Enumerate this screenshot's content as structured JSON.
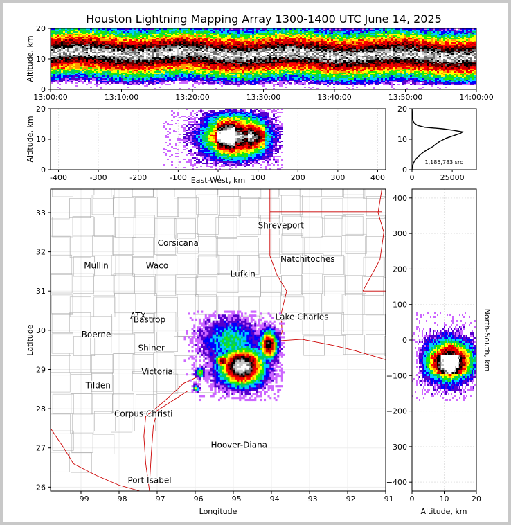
{
  "title": "Houston Lightning Mapping Array 1300-1400 UTC June 14, 2025",
  "colors": {
    "border": "#c8c8c8",
    "state_lines": "#cc0000",
    "county_lines": "#b4b4b4",
    "highlight_station": "#f07832",
    "hoover_diana": "#0000ff",
    "density_scale": [
      "#ffffff",
      "#cc66ff",
      "#5500cc",
      "#0000ff",
      "#00ccff",
      "#00cc66",
      "#22ee00",
      "#ffff00",
      "#ff9900",
      "#ff0000",
      "#cc0000",
      "#600000",
      "#000000",
      "#707070",
      "#c8c8c8",
      "#ffffff"
    ]
  },
  "chart_data": [
    {
      "id": "time-altitude",
      "type": "heatmap",
      "xlabel": "",
      "ylabel": "Altitude, km",
      "xticks": [
        "13:00:00",
        "13:10:00",
        "13:20:00",
        "13:30:00",
        "13:40:00",
        "13:50:00",
        "14:00:00"
      ],
      "yticks": [
        "0",
        "10",
        "20"
      ],
      "xlim": [
        "13:00:00",
        "14:00:00"
      ],
      "ylim": [
        0,
        20
      ],
      "activity": "continuous through the hour, core near 10-14 km"
    },
    {
      "id": "east-west-altitude",
      "type": "heatmap",
      "xlabel": "East-West, km",
      "ylabel": "Altitude, km",
      "xticks": [
        "-400",
        "-300",
        "-200",
        "-100",
        "0",
        "100",
        "200",
        "300",
        "400"
      ],
      "yticks": [
        "0",
        "10",
        "20"
      ],
      "xlim": [
        -420,
        420
      ],
      "ylim": [
        0,
        20
      ]
    },
    {
      "id": "altitude-histogram",
      "type": "line",
      "xticks": [
        "0",
        "25000"
      ],
      "yticks": [
        "0",
        "10",
        "20"
      ],
      "xlim": [
        0,
        40000
      ],
      "ylim": [
        0,
        20
      ],
      "annotation": "1,185,783 src",
      "x": [
        5,
        120,
        350,
        800,
        1500,
        2600,
        4000,
        5800,
        7800,
        10200,
        13000,
        14600,
        17000,
        21000,
        26500,
        30000,
        31500,
        26000,
        19000,
        8000,
        3500,
        1500,
        700,
        380,
        180,
        60
      ],
      "y": [
        0,
        0.6,
        1.2,
        2,
        2.8,
        3.6,
        4.4,
        5.2,
        6,
        6.8,
        7.6,
        8.3,
        9.2,
        10.3,
        11.3,
        11.9,
        12.4,
        12.9,
        13.4,
        13.9,
        14.5,
        15.2,
        16,
        17,
        18.5,
        20
      ]
    },
    {
      "id": "plan-view",
      "type": "heatmap",
      "xlabel": "Longitude",
      "ylabel": "Latitude",
      "xticks": [
        "−99",
        "−98",
        "−97",
        "−96",
        "−95",
        "−94",
        "−93",
        "−92",
        "−91"
      ],
      "yticks": [
        "26",
        "27",
        "28",
        "29",
        "30",
        "31",
        "32",
        "33"
      ],
      "xlim": [
        -99.8,
        -91
      ],
      "ylim": [
        25.9,
        33.6
      ],
      "labels": [
        {
          "text": "Shreveport",
          "lon": -93.75,
          "lat": 32.6
        },
        {
          "text": "Corsicana",
          "lon": -96.45,
          "lat": 32.15
        },
        {
          "text": "Natchitoches",
          "lon": -93.05,
          "lat": 31.75
        },
        {
          "text": "Mullin",
          "lon": -98.6,
          "lat": 31.58,
          "highlight": true
        },
        {
          "text": "Waco",
          "lon": -97.0,
          "lat": 31.58
        },
        {
          "text": "Lufkin",
          "lon": -94.75,
          "lat": 31.37
        },
        {
          "text": "ATX",
          "lon": -97.5,
          "lat": 30.3,
          "highlight": true
        },
        {
          "text": "Bastrop",
          "lon": -97.2,
          "lat": 30.2
        },
        {
          "text": "Lake Charles",
          "lon": -93.2,
          "lat": 30.27
        },
        {
          "text": "Boerne",
          "lon": -98.6,
          "lat": 29.82
        },
        {
          "text": "Shiner",
          "lon": -97.15,
          "lat": 29.48
        },
        {
          "text": "Victoria",
          "lon": -97.0,
          "lat": 28.88
        },
        {
          "text": "Tilden",
          "lon": -98.55,
          "lat": 28.52
        },
        {
          "text": "Corpus Christi",
          "lon": -97.36,
          "lat": 27.8
        },
        {
          "text": "Hoover-Diana",
          "lon": -94.85,
          "lat": 27.0,
          "color": "#0000ff"
        },
        {
          "text": "Port Isabel",
          "lon": -97.2,
          "lat": 26.1
        }
      ]
    },
    {
      "id": "altitude-north-south",
      "type": "heatmap",
      "xlabel": "Altitude, km",
      "ylabel": "North-South, km",
      "xticks": [
        "0",
        "10",
        "20"
      ],
      "yticks": [
        "−400",
        "−300",
        "−200",
        "−100",
        "0",
        "100",
        "200",
        "300",
        "400"
      ],
      "xlim": [
        0,
        20
      ],
      "ylim": [
        -425,
        425
      ]
    }
  ]
}
